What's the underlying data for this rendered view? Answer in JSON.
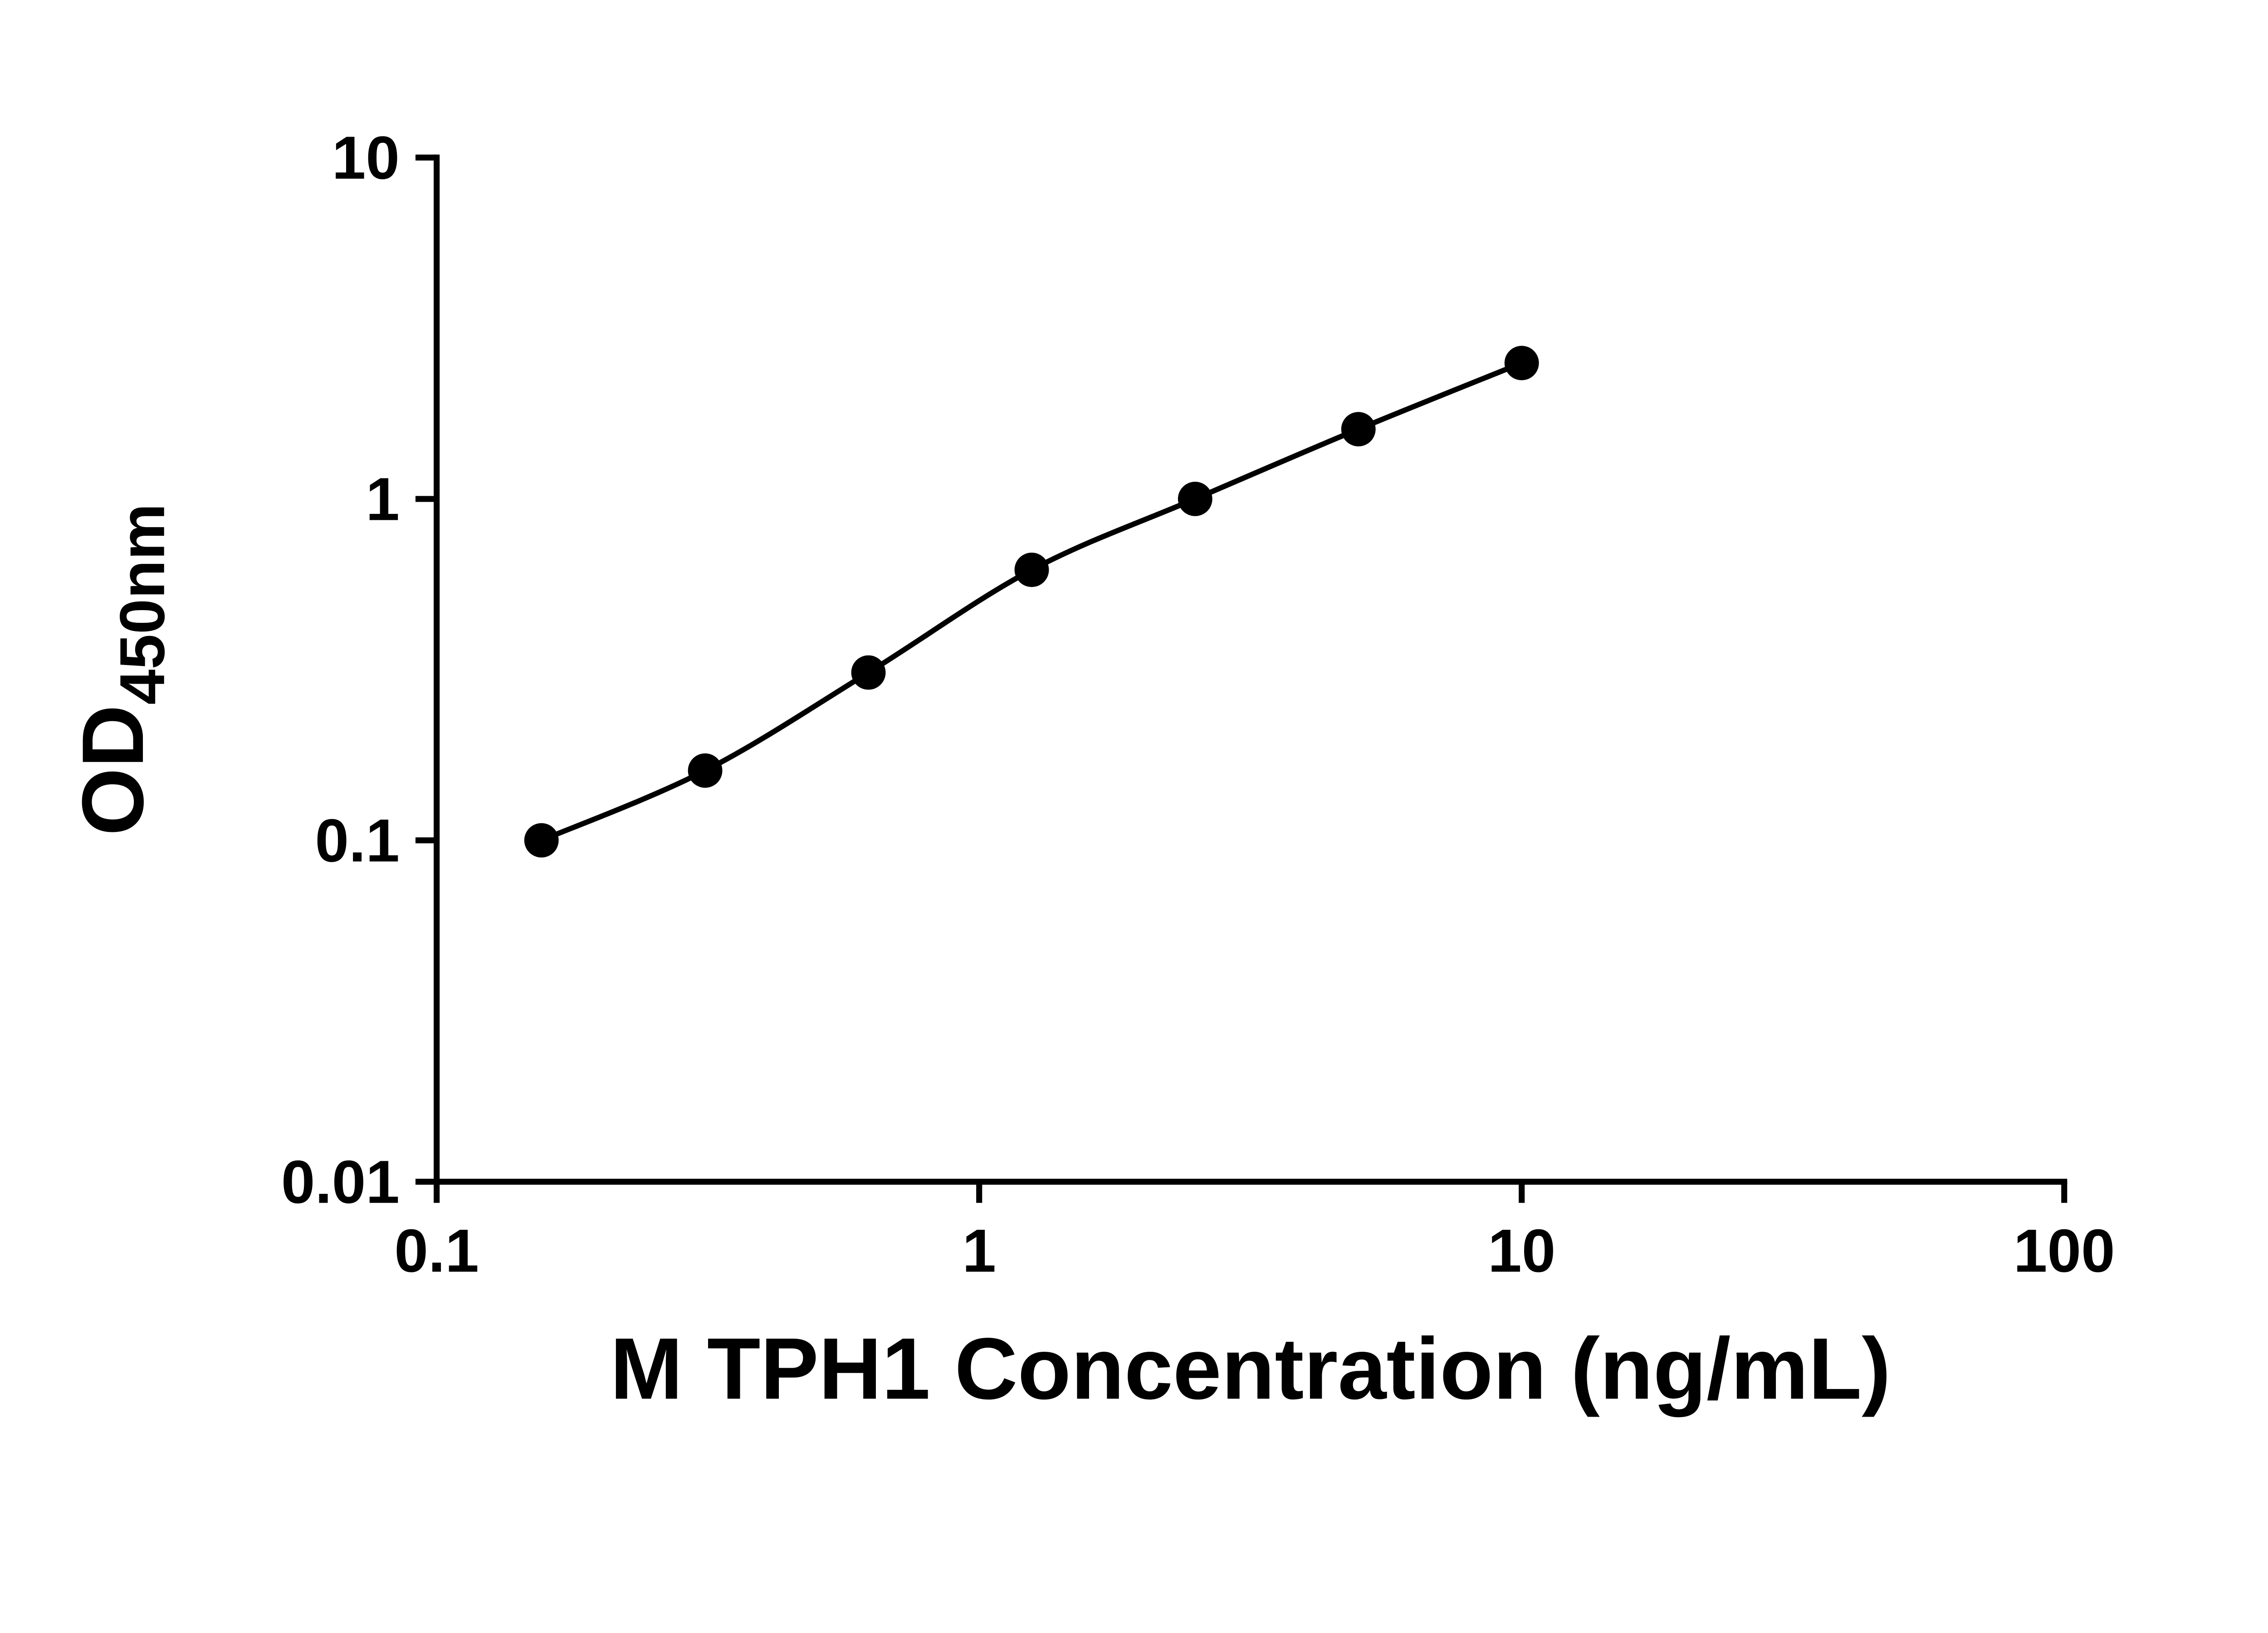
{
  "chart_data": {
    "type": "scatter",
    "title": "",
    "xlabel": "M TPH1 Concentration (ng/mL)",
    "ylabel_main": "OD",
    "ylabel_sub": "450nm",
    "x_scale": "log",
    "y_scale": "log",
    "xlim": [
      0.1,
      100
    ],
    "ylim": [
      0.01,
      10
    ],
    "x_ticks": [
      0.1,
      1,
      10,
      100
    ],
    "x_tick_labels": [
      "0.1",
      "1",
      "10",
      "100"
    ],
    "y_ticks": [
      0.01,
      0.1,
      1,
      10
    ],
    "y_tick_labels": [
      "0.01",
      "0.1",
      "1",
      "10"
    ],
    "x": [
      0.156,
      0.3125,
      0.625,
      1.25,
      2.5,
      5,
      10
    ],
    "y": [
      0.1,
      0.16,
      0.31,
      0.62,
      1.0,
      1.6,
      2.5
    ],
    "marker": "filled-circle",
    "marker_color": "#000000",
    "line_color": "#000000",
    "grid": false,
    "legend": "none"
  }
}
